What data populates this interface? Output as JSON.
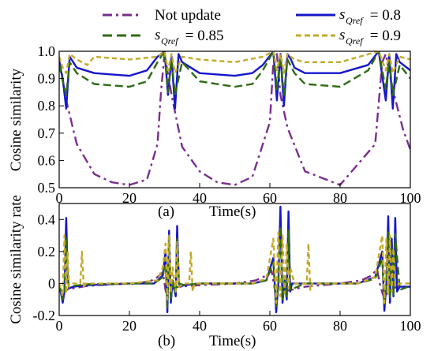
{
  "chart_data": [
    {
      "type": "line",
      "panel_label": "(a)",
      "xlabel": "Time(s)",
      "ylabel": "Cosine similarity",
      "xlim": [
        0,
        100
      ],
      "ylim": [
        0.5,
        1.0
      ],
      "xticks": [
        "0",
        "20",
        "40",
        "60",
        "80",
        "100"
      ],
      "yticks": [
        "0.5",
        "0.6",
        "0.7",
        "0.8",
        "0.9",
        "1.0"
      ],
      "grid": false,
      "legend_position": "top",
      "series": [
        {
          "id": "not_update",
          "name_main": "Not update",
          "color": "#7b2d8e",
          "dash": "dashdot",
          "x": [
            0,
            2,
            5,
            10,
            15,
            20,
            25,
            28,
            29,
            30,
            32,
            35,
            40,
            45,
            50,
            55,
            60,
            61,
            62,
            63,
            65,
            70,
            80,
            90,
            92,
            93,
            95,
            98,
            100
          ],
          "y": [
            0.97,
            0.82,
            0.66,
            0.55,
            0.52,
            0.51,
            0.53,
            0.66,
            0.85,
            0.99,
            0.84,
            0.65,
            0.56,
            0.52,
            0.51,
            0.54,
            0.74,
            0.96,
            0.99,
            0.84,
            0.72,
            0.56,
            0.51,
            0.66,
            0.96,
            0.99,
            0.86,
            0.71,
            0.64
          ]
        },
        {
          "id": "s08",
          "name_sub": "Qref",
          "name_value": " = 0.8",
          "color": "#1515cc",
          "dash": "solid",
          "x": [
            0,
            1,
            2,
            3,
            5,
            10,
            20,
            25,
            28,
            30,
            31,
            32,
            33,
            34,
            35,
            40,
            50,
            55,
            58,
            61,
            62,
            63,
            64,
            65,
            66,
            67,
            70,
            80,
            88,
            91,
            93,
            94,
            95,
            96,
            97,
            100
          ],
          "y": [
            0.96,
            0.9,
            0.79,
            0.98,
            0.94,
            0.92,
            0.91,
            0.93,
            0.98,
            1.0,
            0.84,
            0.98,
            0.79,
            0.99,
            0.96,
            0.92,
            0.91,
            0.92,
            0.95,
            1.0,
            0.82,
            0.99,
            0.8,
            0.99,
            0.97,
            0.94,
            0.92,
            0.92,
            0.95,
            1.0,
            0.82,
            0.99,
            0.79,
            0.99,
            0.96,
            0.93
          ]
        },
        {
          "id": "s085",
          "name_sub": "Qref",
          "name_value": " = 0.85",
          "color": "#2e6b12",
          "dash": "dashed",
          "x": [
            0,
            1,
            2,
            3,
            5,
            10,
            20,
            25,
            28,
            30,
            31,
            32,
            33,
            35,
            40,
            50,
            55,
            58,
            61,
            62,
            63,
            64,
            65,
            67,
            70,
            80,
            88,
            91,
            93,
            94,
            95,
            97,
            100
          ],
          "y": [
            0.95,
            0.89,
            0.84,
            0.96,
            0.92,
            0.88,
            0.87,
            0.89,
            0.96,
            1.0,
            0.85,
            0.97,
            0.84,
            0.96,
            0.89,
            0.87,
            0.88,
            0.93,
            1.0,
            0.86,
            0.98,
            0.84,
            0.97,
            0.92,
            0.88,
            0.87,
            0.93,
            1.0,
            0.86,
            0.97,
            0.84,
            0.95,
            0.9
          ]
        },
        {
          "id": "s09",
          "name_sub": "Qref",
          "name_value": " = 0.9",
          "color": "#c4a92a",
          "dash": "shortdash",
          "x": [
            0,
            1,
            2,
            3,
            5,
            8,
            10,
            20,
            28,
            30,
            31,
            32,
            33,
            35,
            40,
            50,
            58,
            61,
            62,
            63,
            64,
            65,
            67,
            70,
            80,
            91,
            93,
            94,
            95,
            97,
            100
          ],
          "y": [
            0.98,
            0.94,
            0.92,
            0.99,
            0.97,
            0.95,
            0.98,
            0.97,
            0.98,
            1.0,
            0.93,
            0.99,
            0.92,
            0.98,
            0.97,
            0.96,
            0.98,
            1.0,
            0.93,
            0.99,
            0.92,
            0.99,
            0.97,
            0.96,
            0.96,
            1.0,
            0.93,
            0.99,
            0.92,
            0.98,
            0.97
          ]
        }
      ]
    },
    {
      "type": "line",
      "panel_label": "(b)",
      "xlabel": "Time(s)",
      "ylabel": "Cosine similarity rate",
      "xlim": [
        0,
        100
      ],
      "ylim": [
        -0.2,
        0.5
      ],
      "xticks": [
        "0",
        "20",
        "40",
        "60",
        "80",
        "100"
      ],
      "yticks": [
        "-0.2",
        "0",
        "0.2",
        "0.4"
      ],
      "grid": false,
      "series": [
        {
          "id": "not_update",
          "color": "#7b2d8e",
          "dash": "dashdot",
          "x": [
            0,
            2,
            4,
            8,
            15,
            22,
            26,
            28,
            29.5,
            30.5,
            31.5,
            34,
            40,
            50,
            56,
            59,
            60.5,
            61.5,
            62.5,
            64,
            70,
            80,
            86,
            89,
            90.5,
            91.5,
            92.5,
            94,
            96,
            100
          ],
          "y": [
            -0.05,
            -0.04,
            -0.03,
            -0.015,
            -0.005,
            0.0,
            0.015,
            0.04,
            0.07,
            -0.07,
            -0.04,
            -0.02,
            -0.01,
            0.0,
            0.02,
            0.05,
            0.08,
            -0.05,
            -0.08,
            -0.05,
            -0.02,
            0.0,
            0.02,
            0.05,
            0.09,
            -0.02,
            -0.09,
            -0.05,
            -0.02,
            -0.02
          ]
        },
        {
          "id": "s08",
          "color": "#1515cc",
          "dash": "solid",
          "x": [
            0,
            1.0,
            1.5,
            2.0,
            2.4,
            2.8,
            4,
            8,
            20,
            27,
            29.5,
            30.3,
            30.8,
            31.3,
            31.8,
            32.3,
            33.2,
            33.6,
            34.1,
            34.6,
            35.5,
            40,
            55,
            59,
            61.0,
            61.8,
            62.4,
            63.0,
            63.6,
            64.2,
            64.8,
            65.3,
            65.8,
            66.3,
            70,
            85,
            90,
            92.0,
            92.6,
            93.2,
            93.7,
            94.2,
            94.7,
            95.2,
            95.7,
            96.2,
            97,
            100
          ],
          "y": [
            0.0,
            -0.12,
            -0.05,
            0.41,
            0.05,
            -0.03,
            -0.02,
            -0.01,
            0.0,
            0.0,
            0.05,
            0.2,
            -0.18,
            0.33,
            -0.12,
            0.02,
            -0.08,
            0.36,
            0.0,
            -0.02,
            -0.01,
            0.0,
            0.0,
            0.02,
            0.16,
            -0.18,
            0.0,
            0.48,
            -0.12,
            0.02,
            -0.1,
            0.45,
            -0.05,
            0.0,
            0.0,
            0.0,
            0.04,
            0.2,
            -0.17,
            0.0,
            0.42,
            -0.12,
            0.28,
            -0.08,
            0.41,
            -0.05,
            -0.02,
            -0.02
          ]
        },
        {
          "id": "s085",
          "color": "#2e6b12",
          "dash": "dashed",
          "x": [
            0,
            1.0,
            1.5,
            2.0,
            2.4,
            2.8,
            4,
            8,
            20,
            27,
            29.5,
            30.3,
            30.8,
            31.3,
            31.8,
            32.3,
            33.2,
            33.6,
            34.1,
            35.5,
            40,
            55,
            59,
            61.0,
            61.8,
            62.4,
            63.0,
            63.6,
            64.2,
            64.8,
            65.3,
            65.8,
            70,
            85,
            90,
            92.0,
            92.6,
            93.2,
            93.7,
            94.2,
            94.7,
            95.2,
            95.7,
            97,
            100
          ],
          "y": [
            0.0,
            -0.1,
            -0.03,
            0.28,
            0.03,
            -0.02,
            -0.015,
            -0.005,
            0.0,
            0.0,
            0.04,
            0.16,
            -0.15,
            0.26,
            -0.1,
            0.02,
            -0.06,
            0.28,
            0.0,
            -0.01,
            0.0,
            0.0,
            0.02,
            0.13,
            -0.15,
            0.0,
            0.36,
            -0.1,
            0.02,
            -0.08,
            0.33,
            -0.04,
            0.0,
            0.0,
            0.03,
            0.16,
            -0.14,
            0.0,
            0.32,
            -0.1,
            0.22,
            -0.07,
            0.31,
            -0.04,
            -0.015
          ]
        },
        {
          "id": "s09",
          "color": "#c4a92a",
          "dash": "shortdash",
          "x": [
            0,
            1.0,
            1.5,
            2.0,
            2.4,
            2.8,
            4,
            6.0,
            6.5,
            7.0,
            7.5,
            9,
            20,
            28,
            29.5,
            30.3,
            30.8,
            31.3,
            31.8,
            32.3,
            33.2,
            33.6,
            34.1,
            36,
            37.0,
            37.5,
            38.0,
            38.5,
            40,
            55,
            59,
            61.0,
            61.8,
            62.4,
            63.0,
            63.6,
            64.2,
            64.8,
            65.3,
            65.8,
            67,
            70.5,
            71.0,
            71.5,
            72.0,
            74,
            85,
            90,
            92.0,
            92.6,
            93.2,
            93.7,
            94.2,
            94.7,
            95.2,
            95.7,
            97,
            100
          ],
          "y": [
            0.0,
            -0.08,
            0.3,
            -0.06,
            0.2,
            -0.02,
            0.0,
            0.0,
            0.2,
            -0.03,
            0.0,
            0.0,
            0.0,
            0.02,
            0.1,
            0.25,
            -0.1,
            0.3,
            -0.06,
            0.1,
            -0.05,
            0.26,
            -0.02,
            0.0,
            0.0,
            0.2,
            -0.05,
            0.0,
            0.0,
            0.0,
            0.03,
            0.28,
            -0.12,
            0.32,
            -0.08,
            0.3,
            -0.06,
            0.25,
            -0.03,
            0.1,
            0.0,
            0.0,
            0.25,
            -0.04,
            0.0,
            0.0,
            0.0,
            0.04,
            0.3,
            -0.12,
            0.28,
            -0.07,
            0.3,
            -0.05,
            0.22,
            -0.02,
            0.0,
            0.0
          ]
        }
      ]
    }
  ]
}
